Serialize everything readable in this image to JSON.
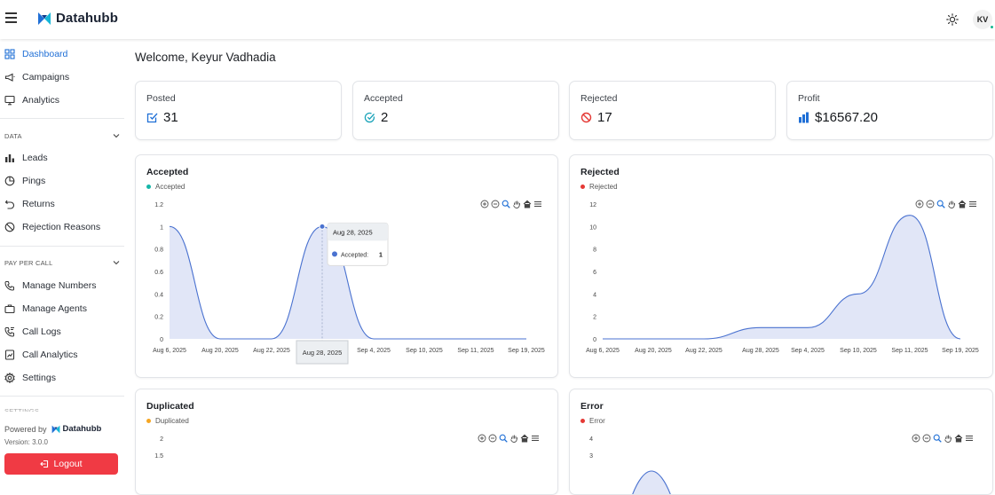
{
  "app": {
    "name": "Datahubb",
    "avatar_initials": "KV",
    "accent": "#1f6fd6"
  },
  "sidebar": {
    "main_items": [
      {
        "label": "Dashboard",
        "icon": "dashboard-icon",
        "active": true
      },
      {
        "label": "Campaigns",
        "icon": "megaphone-icon"
      },
      {
        "label": "Analytics",
        "icon": "monitor-icon"
      }
    ],
    "data_section": {
      "label": "DATA",
      "items": [
        {
          "label": "Leads",
          "icon": "bar-chart-icon"
        },
        {
          "label": "Pings",
          "icon": "pie-chart-icon"
        },
        {
          "label": "Returns",
          "icon": "undo-icon"
        },
        {
          "label": "Rejection Reasons",
          "icon": "ban-icon"
        }
      ]
    },
    "ppc_section": {
      "label": "PAY PER CALL",
      "items": [
        {
          "label": "Manage Numbers",
          "icon": "phone-icon"
        },
        {
          "label": "Manage Agents",
          "icon": "briefcase-icon"
        },
        {
          "label": "Call Logs",
          "icon": "phone-log-icon"
        },
        {
          "label": "Call Analytics",
          "icon": "chart-doc-icon"
        },
        {
          "label": "Settings",
          "icon": "gear-icon"
        }
      ]
    },
    "next_section_label": "SETTINGS",
    "powered_by": "Powered by",
    "powered_brand": "Datahubb",
    "version": "Version: 3.0.0",
    "logout": "Logout"
  },
  "main": {
    "welcome": "Welcome, Keyur Vadhadia",
    "stats": [
      {
        "label": "Posted",
        "value": "31",
        "icon": "check-square-icon",
        "color": "#1f6fd6"
      },
      {
        "label": "Accepted",
        "value": "2",
        "icon": "check-circle-icon",
        "color": "#17a2b8"
      },
      {
        "label": "Rejected",
        "value": "17",
        "icon": "ban-icon",
        "color": "#e53935"
      },
      {
        "label": "Profit",
        "value": "$16567.20",
        "icon": "bar-chart-icon",
        "color": "#1f6fd6"
      }
    ]
  },
  "chart_data": [
    {
      "type": "area",
      "title": "Accepted",
      "series": [
        {
          "name": "Accepted",
          "values": [
            1,
            0,
            0,
            1,
            0,
            0,
            0,
            0
          ]
        }
      ],
      "legend_dot_color": "#16b6a8",
      "x": [
        "Aug 6, 2025",
        "Aug 20, 2025",
        "Aug 22, 2025",
        "Aug 28, 2025",
        "Sep 4, 2025",
        "Sep 10, 2025",
        "Sep 11, 2025",
        "Sep 19, 2025"
      ],
      "y_ticks": [
        "1.2",
        "1",
        "0.8",
        "0.6",
        "0.4",
        "0.2",
        "0"
      ],
      "ylim": [
        0,
        1.2
      ],
      "tooltip": {
        "date": "Aug 28, 2025",
        "label": "Accepted:",
        "value": "1",
        "index": 3
      },
      "crosshair_label": "Aug 28, 2025"
    },
    {
      "type": "area",
      "title": "Rejected",
      "series": [
        {
          "name": "Rejected",
          "values": [
            0,
            0,
            0,
            1,
            1,
            4,
            11,
            0
          ]
        }
      ],
      "legend_dot_color": "#e53935",
      "x": [
        "Aug 6, 2025",
        "Aug 20, 2025",
        "Aug 22, 2025",
        "Aug 28, 2025",
        "Sep 4, 2025",
        "Sep 10, 2025",
        "Sep 11, 2025",
        "Sep 19, 2025"
      ],
      "y_ticks": [
        "12",
        "10",
        "8",
        "6",
        "4",
        "2",
        "0"
      ],
      "ylim": [
        0,
        12
      ]
    },
    {
      "type": "area",
      "title": "Duplicated",
      "series": [
        {
          "name": "Duplicated",
          "values": []
        }
      ],
      "legend_dot_color": "#f5a623",
      "y_ticks": [
        "2",
        "1.5"
      ],
      "ylim": [
        0,
        2
      ]
    },
    {
      "type": "area",
      "title": "Error",
      "series": [
        {
          "name": "Error",
          "values": []
        }
      ],
      "legend_dot_color": "#e53935",
      "y_ticks": [
        "4",
        "3"
      ],
      "ylim": [
        0,
        4
      ]
    }
  ]
}
